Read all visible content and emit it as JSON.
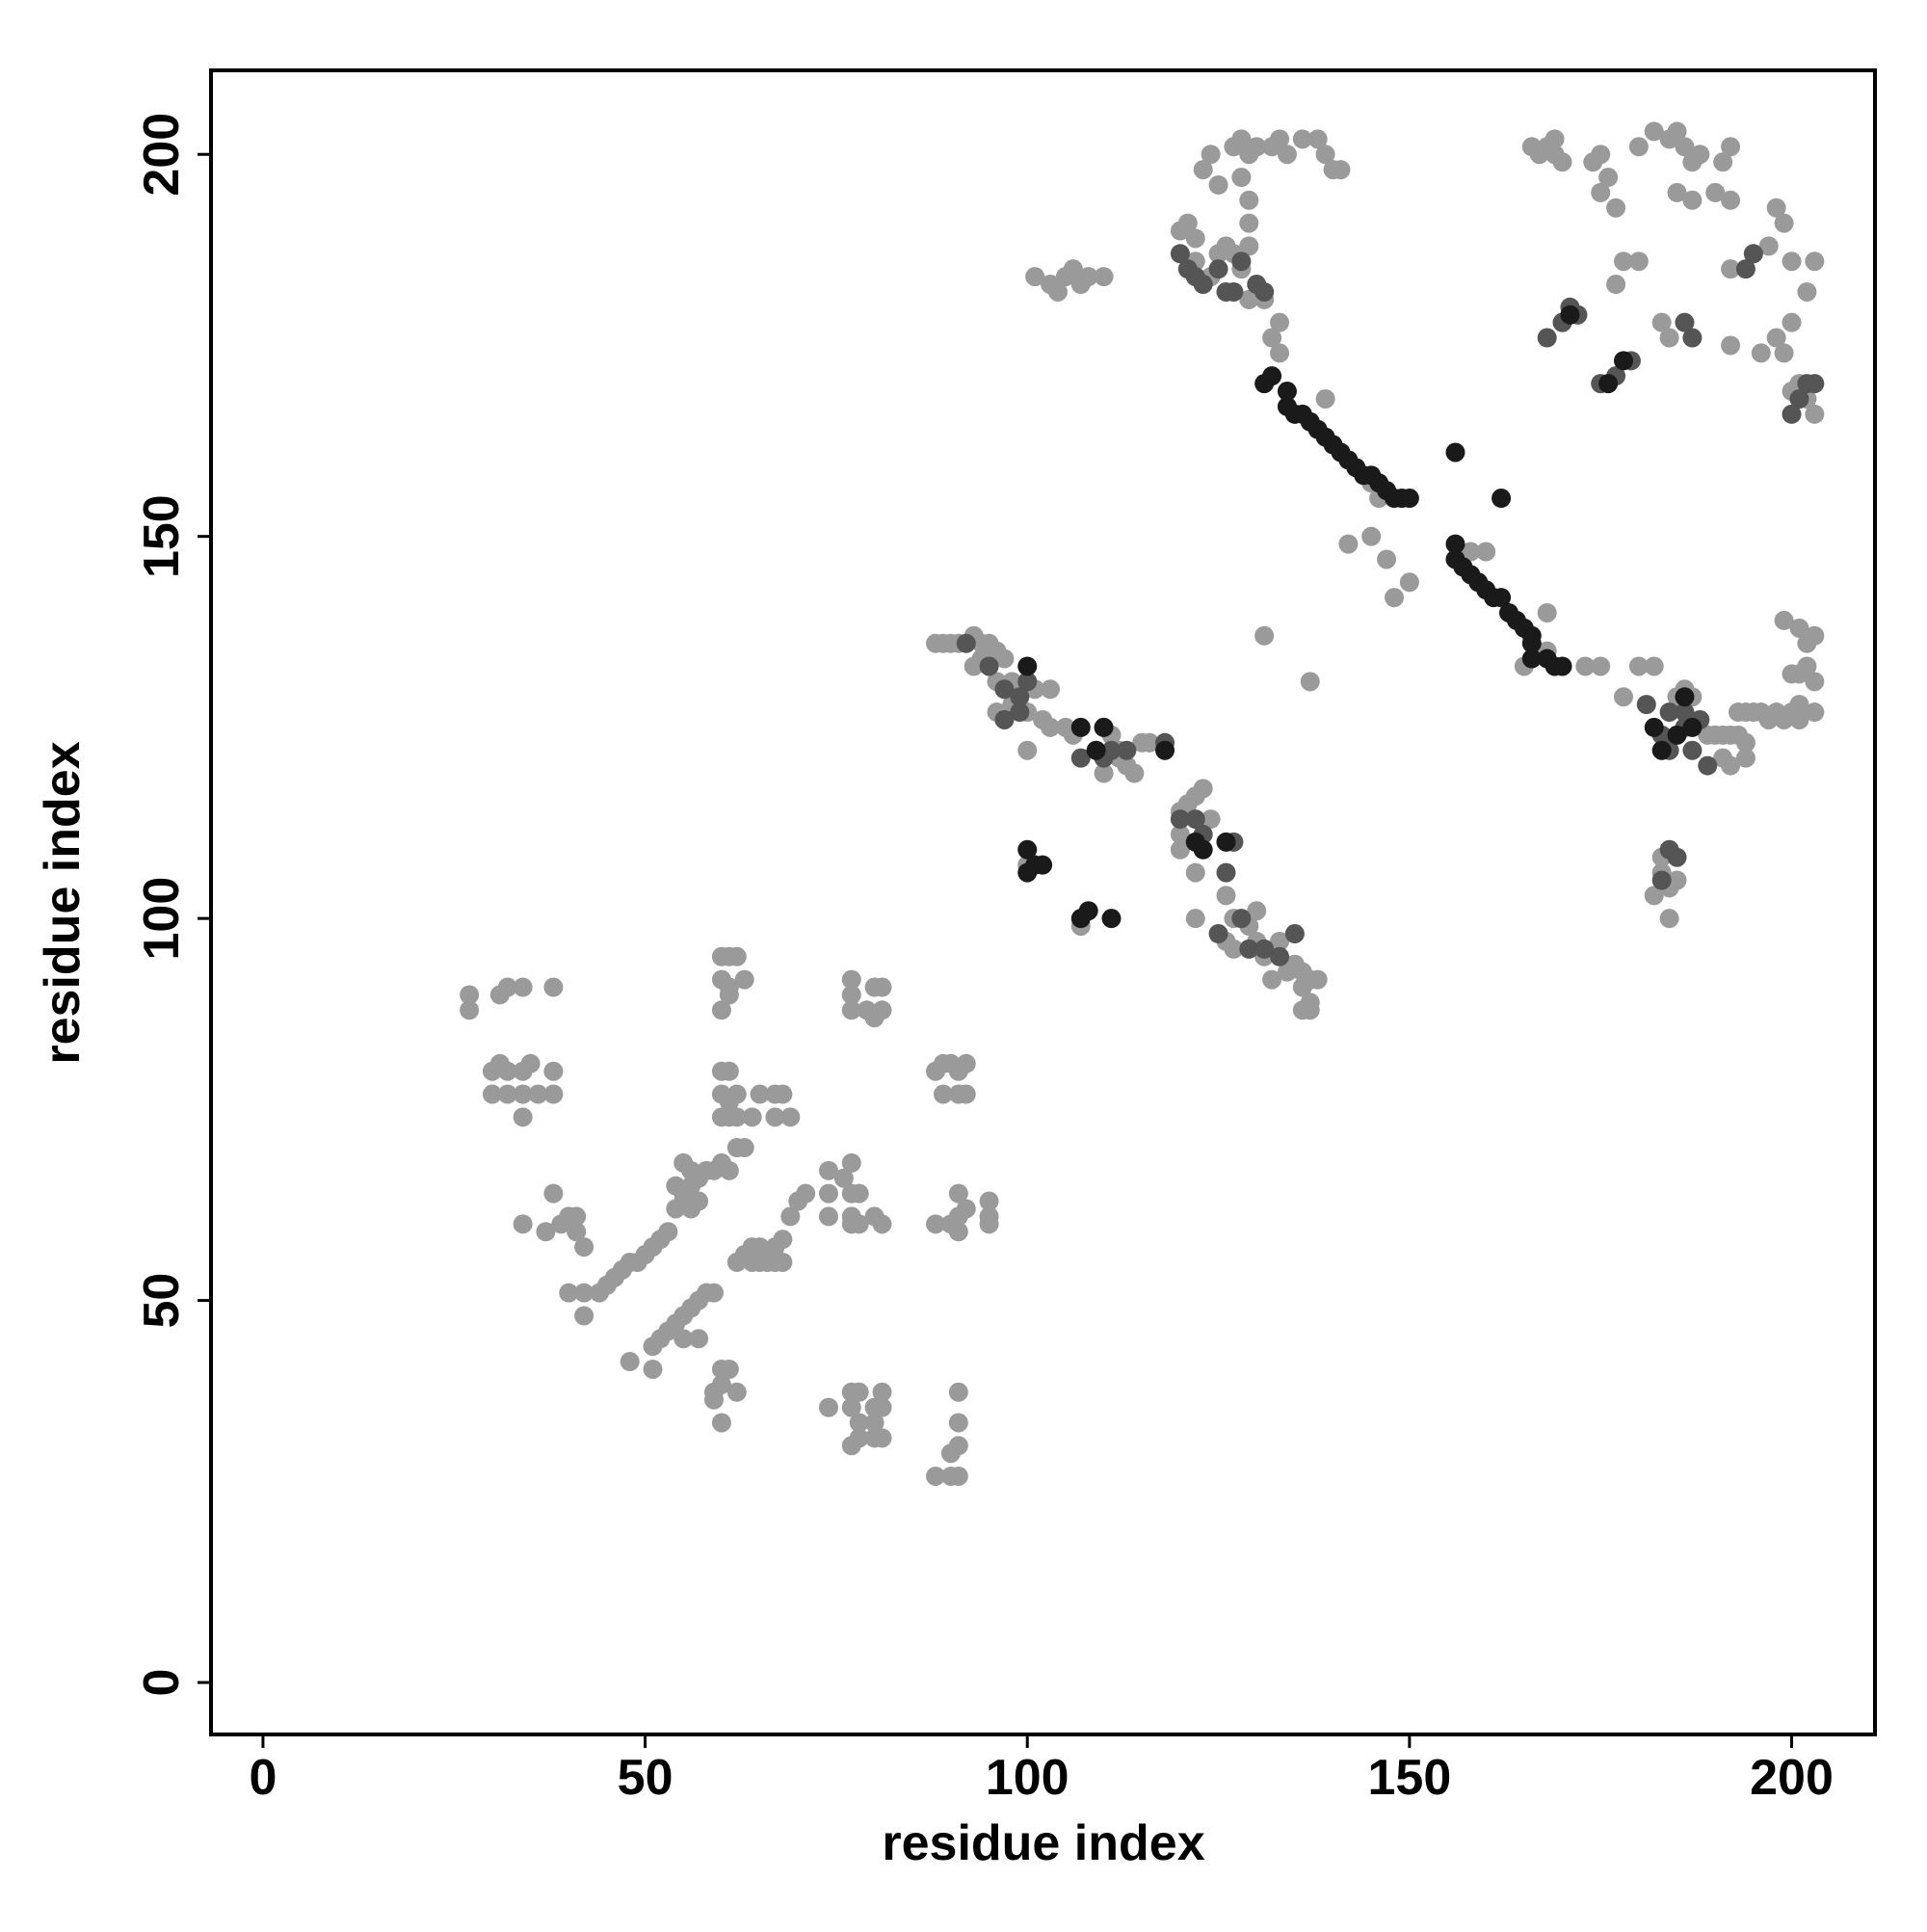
{
  "chart_data": {
    "type": "scatter",
    "x_label": "residue index",
    "y_label": "residue index",
    "xlim": [
      -6.8,
      210.9
    ],
    "ylim": [
      -6.8,
      211
    ],
    "xticks": [
      0,
      50,
      100,
      150,
      200
    ],
    "yticks": [
      0,
      50,
      100,
      150,
      200
    ],
    "series": [
      {
        "color": "#9a9a9a",
        "x": [
          27,
          27,
          31,
          32,
          34,
          38,
          30,
          31,
          32,
          30,
          32,
          34,
          35,
          34,
          36,
          38,
          38,
          34,
          38,
          34,
          37,
          39,
          40,
          41,
          41,
          42,
          40,
          42,
          42,
          44,
          45,
          46,
          47,
          48,
          49,
          50,
          51,
          52,
          53,
          54,
          55,
          56,
          57,
          58,
          59,
          60,
          61,
          48,
          51,
          52,
          53,
          54,
          55,
          56,
          57,
          58,
          59,
          51,
          55,
          57,
          54,
          55,
          56,
          57,
          55,
          56,
          60,
          61,
          59,
          60,
          62,
          60,
          59,
          62,
          63,
          64,
          65,
          66,
          67,
          68,
          69,
          70,
          71,
          66,
          67,
          68,
          64,
          65,
          60,
          60,
          61,
          62,
          63,
          60,
          61,
          61,
          60,
          61,
          60,
          61,
          62,
          60,
          61,
          62,
          64,
          65,
          67,
          67,
          68,
          69,
          63,
          62,
          74,
          77,
          78,
          77,
          78,
          80,
          81,
          81,
          77,
          78,
          80,
          81,
          80,
          77,
          77,
          77,
          80,
          81,
          81,
          79,
          80,
          74,
          74,
          77,
          78,
          77,
          78,
          80,
          81,
          77,
          76,
          74,
          77,
          88,
          89,
          90,
          91,
          92,
          89,
          91,
          92,
          88,
          91,
          92,
          90,
          91,
          95,
          95,
          95,
          91,
          88,
          90,
          91,
          90,
          91,
          91,
          91,
          88,
          89,
          90,
          91,
          93,
          94,
          95,
          94,
          96,
          97,
          93,
          96,
          98,
          100,
          101,
          103,
          100,
          102,
          103,
          98,
          96,
          100,
          105,
          106,
          110,
          111,
          112,
          113,
          115,
          116,
          110,
          112,
          114,
          120,
          121,
          122,
          123,
          120,
          120,
          124,
          126,
          127,
          126,
          127,
          129,
          130,
          130,
          131,
          132,
          133,
          134,
          135,
          136,
          136,
          137,
          137,
          138,
          136,
          137,
          122,
          100,
          107,
          122,
          142,
          145,
          147,
          148,
          150,
          131,
          137,
          135,
          139,
          145,
          146,
          158,
          160,
          165,
          168,
          173,
          168,
          123,
          124,
          125,
          127,
          128,
          129,
          130,
          128,
          129,
          129,
          129,
          132,
          133,
          134,
          136,
          138,
          139,
          140,
          141,
          120,
          121,
          122,
          122,
          124,
          125,
          126,
          127,
          128,
          129,
          131,
          133,
          132,
          133,
          101,
          103,
          104,
          105,
          106,
          107,
          108,
          110,
          166,
          167,
          168,
          169,
          170,
          169,
          174,
          175,
          175,
          176,
          177,
          180,
          182,
          184,
          185,
          186,
          187,
          188,
          191,
          192,
          185,
          187,
          190,
          192,
          198,
          199,
          192,
          195,
          197,
          200,
          203,
          202,
          200,
          199,
          196,
          198,
          192,
          201,
          200,
          202,
          203,
          178,
          180,
          177,
          172,
          170,
          183,
          184,
          175,
          178,
          180,
          182,
          185,
          186,
          187,
          189,
          190,
          191,
          192,
          193,
          194,
          195,
          196,
          197,
          198,
          199,
          200,
          201,
          200,
          201,
          202,
          203,
          203,
          199,
          201,
          202,
          203,
          201,
          191,
          192,
          194,
          183,
          184,
          185,
          184,
          182,
          183,
          193,
          194
        ],
        "y": [
          90,
          88,
          90,
          91,
          91,
          91,
          80,
          81,
          80,
          77,
          77,
          80,
          81,
          77,
          77,
          80,
          77,
          74,
          64,
          60,
          59,
          60,
          61,
          61,
          59,
          57,
          51,
          51,
          48,
          51,
          52,
          53,
          54,
          55,
          55,
          56,
          57,
          58,
          59,
          62,
          63,
          65,
          66,
          67,
          67,
          68,
          67,
          42,
          44,
          45,
          46,
          47,
          48,
          49,
          50,
          51,
          51,
          41,
          45,
          45,
          65,
          64,
          62,
          63,
          68,
          67,
          41,
          41,
          38,
          39,
          38,
          34,
          37,
          55,
          56,
          57,
          55,
          56,
          57,
          58,
          61,
          63,
          64,
          55,
          55,
          55,
          55,
          57,
          92,
          95,
          95,
          95,
          92,
          88,
          90,
          91,
          80,
          80,
          77,
          76,
          77,
          74,
          74,
          74,
          74,
          77,
          77,
          74,
          77,
          74,
          70,
          70,
          36,
          36,
          34,
          38,
          38,
          36,
          36,
          38,
          31,
          32,
          32,
          32,
          34,
          92,
          90,
          88,
          91,
          91,
          88,
          88,
          87,
          67,
          64,
          64,
          64,
          61,
          60,
          61,
          60,
          68,
          66,
          61,
          60,
          80,
          81,
          81,
          80,
          81,
          77,
          77,
          77,
          60,
          64,
          62,
          60,
          59,
          63,
          60,
          61,
          61,
          27,
          27,
          27,
          30,
          31,
          34,
          38,
          136,
          136,
          136,
          136,
          137,
          136,
          136,
          134,
          135,
          134,
          133,
          131,
          131,
          131,
          130,
          130,
          127,
          126,
          125,
          128,
          127,
          122,
          125,
          124,
          125,
          124,
          122,
          120,
          123,
          123,
          119,
          121,
          119,
          114,
          115,
          116,
          117,
          111,
          109,
          113,
          103,
          100,
          97,
          96,
          99,
          101,
          97,
          95,
          92,
          97,
          93,
          94,
          93,
          91,
          92,
          89,
          92,
          88,
          88,
          100,
          107,
          99,
          106,
          149,
          150,
          147,
          142,
          144,
          137,
          131,
          166,
          168,
          157,
          155,
          148,
          148,
          133,
          140,
          133,
          135,
          198,
          200,
          196,
          201,
          202,
          200,
          201,
          197,
          194,
          191,
          188,
          201,
          202,
          200,
          202,
          202,
          200,
          198,
          198,
          190,
          191,
          189,
          186,
          184,
          187,
          188,
          187,
          185,
          181,
          181,
          178,
          176,
          174,
          184,
          183,
          182,
          184,
          185,
          183,
          184,
          184,
          201,
          200,
          201,
          200,
          199,
          202,
          199,
          200,
          195,
          197,
          193,
          201,
          203,
          202,
          203,
          201,
          199,
          200,
          199,
          201,
          195,
          194,
          195,
          194,
          193,
          191,
          185,
          187,
          188,
          186,
          186,
          182,
          178,
          174,
          174,
          176,
          175,
          170,
          169,
          168,
          166,
          186,
          186,
          183,
          179,
          178,
          178,
          176,
          133,
          129,
          133,
          133,
          129,
          130,
          129,
          124,
          124,
          124,
          124,
          127,
          127,
          127,
          127,
          126,
          127,
          126,
          127,
          126,
          132,
          132,
          133,
          131,
          127,
          139,
          138,
          136,
          137,
          128,
          121,
          120,
          121,
          106,
          104,
          105,
          100,
          103,
          108,
          124,
          123
        ]
      },
      {
        "color": "#555555",
        "x": [
          92,
          95,
          97,
          99,
          100,
          97,
          99,
          107,
          110,
          111,
          113,
          118,
          120,
          122,
          123,
          126,
          127,
          125,
          128,
          129,
          131,
          133,
          135,
          120,
          121,
          122,
          123,
          125,
          126,
          127,
          128,
          130,
          131,
          168,
          170,
          171,
          172,
          175,
          177,
          179,
          186,
          187,
          194,
          195,
          202,
          201,
          203,
          200,
          181,
          184,
          183,
          184,
          186,
          186,
          188,
          187,
          189,
          184,
          185,
          183
        ],
        "y": [
          136,
          133,
          130,
          129,
          131,
          126,
          127,
          121,
          121,
          122,
          122,
          123,
          113,
          113,
          111,
          106,
          110,
          98,
          100,
          96,
          96,
          95,
          98,
          187,
          185,
          184,
          183,
          185,
          182,
          182,
          186,
          183,
          182,
          176,
          178,
          180,
          179,
          170,
          171,
          173,
          178,
          176,
          185,
          187,
          170,
          168,
          170,
          166,
          128,
          127,
          124,
          122,
          125,
          127,
          126,
          122,
          120,
          109,
          108,
          105
        ]
      },
      {
        "color": "#1a1a1a",
        "x": [
          100,
          107,
          110,
          109,
          118,
          122,
          123,
          126,
          108,
          107,
          111,
          102,
          100,
          101,
          100,
          131,
          132,
          134,
          134,
          135,
          136,
          137,
          138,
          139,
          140,
          141,
          142,
          143,
          144,
          145,
          146,
          147,
          148,
          149,
          150,
          156,
          156,
          157,
          158,
          159,
          160,
          161,
          162,
          163,
          164,
          165,
          166,
          166,
          166,
          168,
          169,
          170,
          156,
          162,
          171,
          178,
          176,
          182,
          183,
          185,
          186,
          187
        ],
        "y": [
          133,
          125,
          125,
          122,
          122,
          110,
          109,
          110,
          101,
          100,
          100,
          107,
          109,
          107,
          106,
          170,
          171,
          169,
          167,
          166,
          166,
          165,
          164,
          163,
          162,
          161,
          160,
          159,
          158,
          158,
          157,
          156,
          155,
          155,
          155,
          149,
          147,
          146,
          145,
          144,
          143,
          142,
          142,
          140,
          139,
          138,
          137,
          136,
          134,
          134,
          133,
          133,
          161,
          155,
          179,
          173,
          170,
          125,
          122,
          124,
          129,
          125
        ]
      }
    ]
  }
}
